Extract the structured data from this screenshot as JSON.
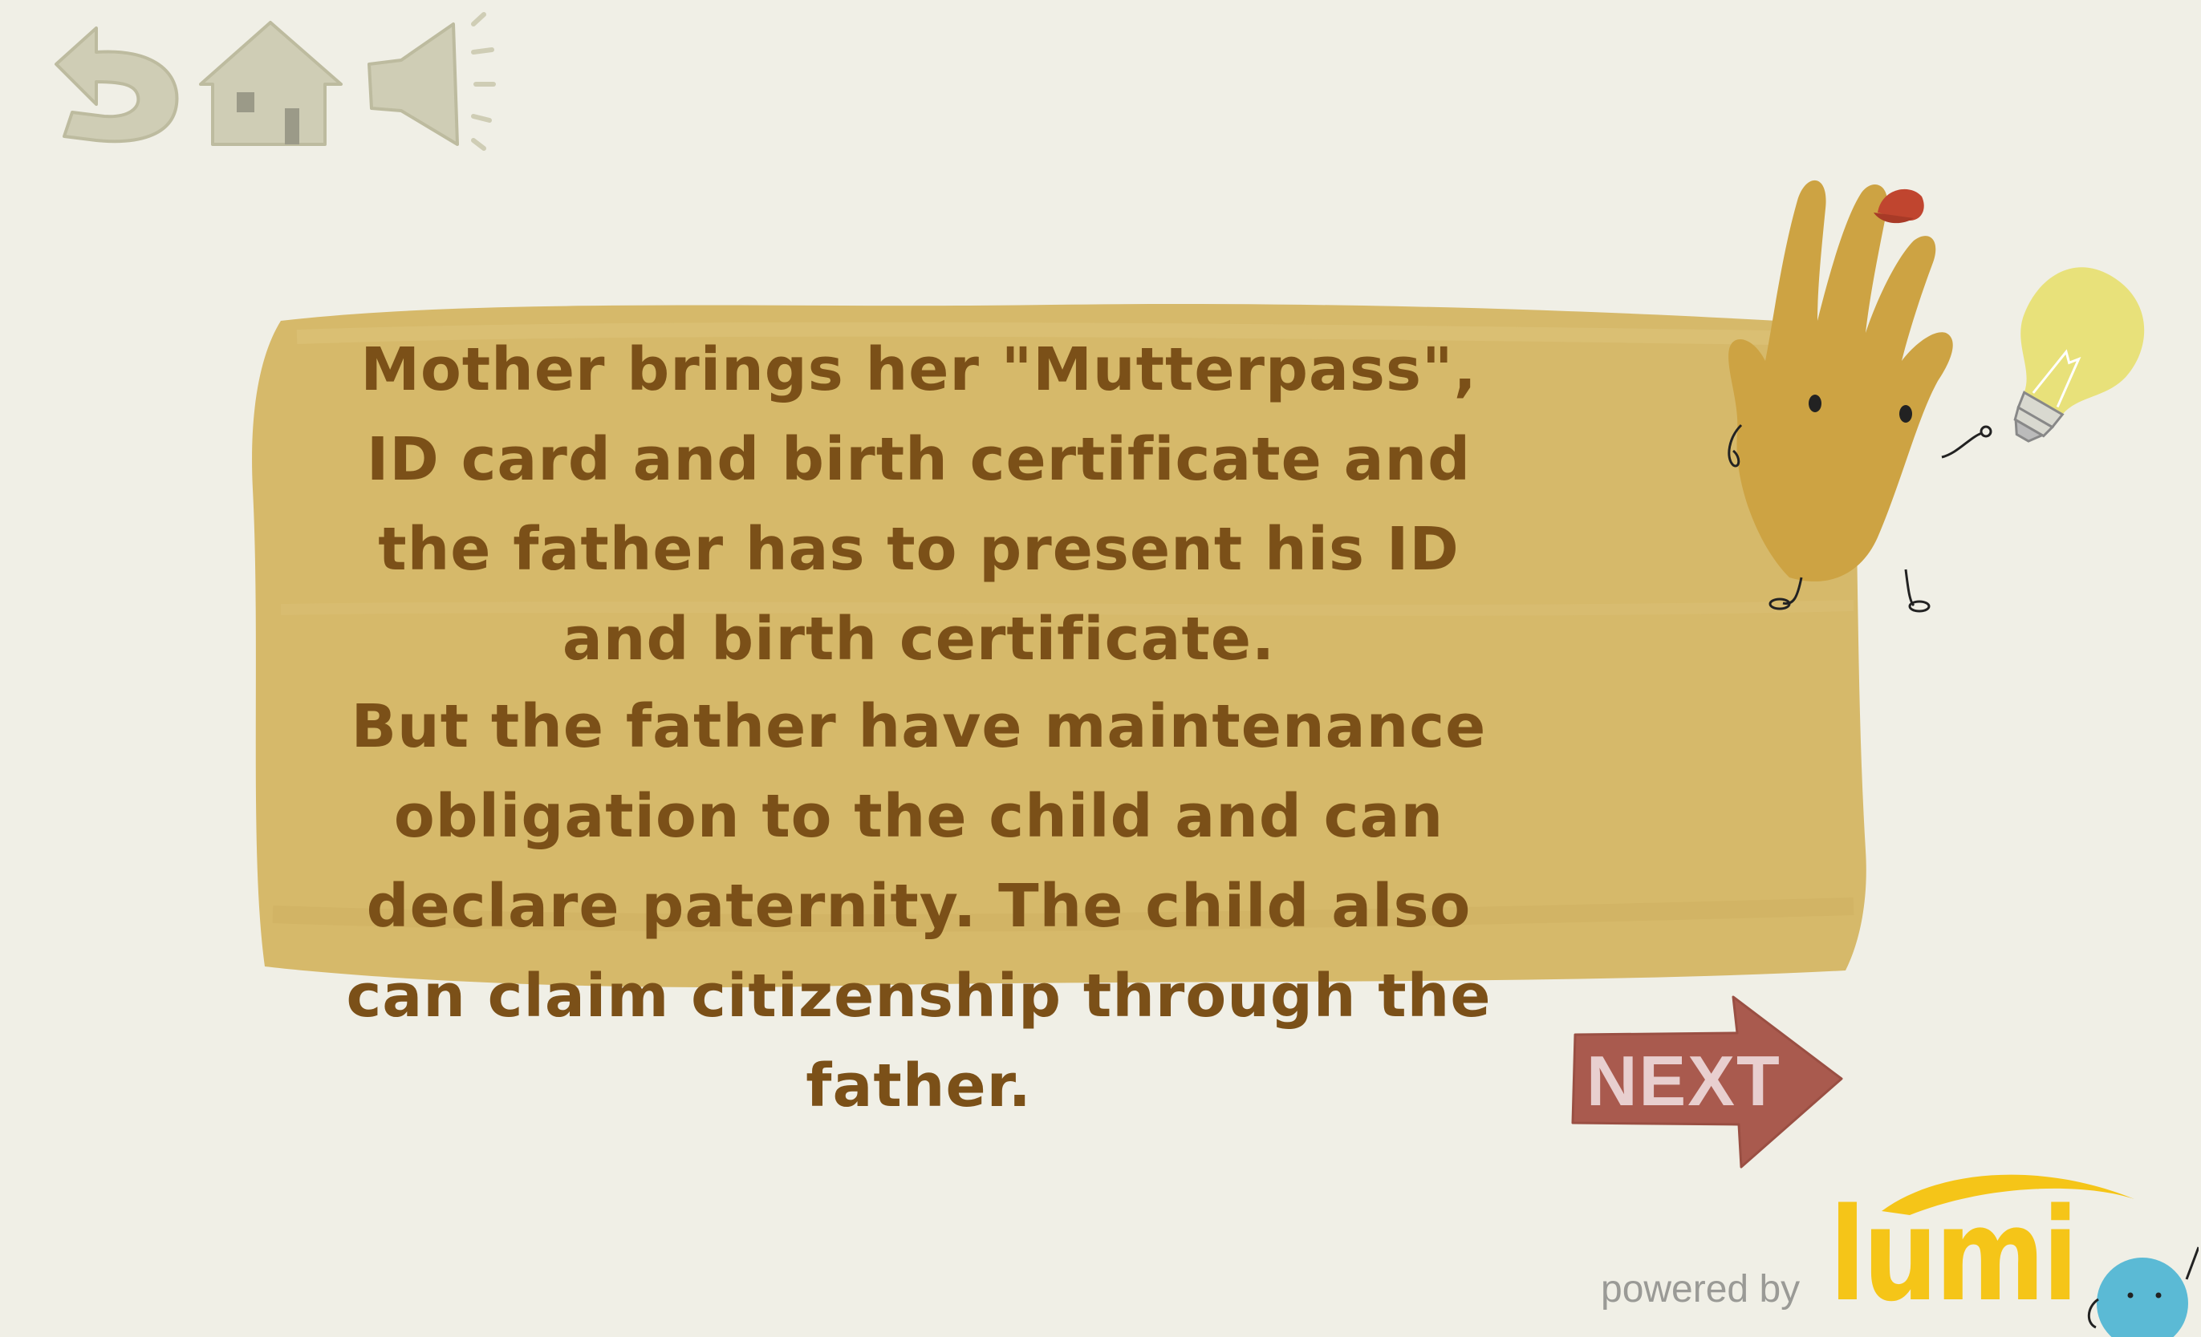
{
  "toolbar": {
    "back_icon": "undo-arrow-icon",
    "home_icon": "home-icon",
    "sound_icon": "speaker-icon"
  },
  "card": {
    "paragraph_1": "Mother brings her \"Mutterpass\", ID card and birth certificate and the father has to present his ID and birth certificate.",
    "paragraph_2": "But the father have maintenance obligation to the child and can declare paternity. The child also can claim citizenship through the father."
  },
  "mascot": {
    "icon": "hand-character-with-lightbulb-icon"
  },
  "navigation": {
    "next_label": "NEXT"
  },
  "footer": {
    "powered_by": "powered by",
    "brand": "lumi"
  },
  "colors": {
    "background": "#f0efe6",
    "card": "#d6b96a",
    "text": "#7b5018",
    "toolbar_icon": "#cfcdb5",
    "next_button": "#a95a4e",
    "lumi_yellow": "#f5c518",
    "lumi_blue": "#5bbad5"
  }
}
